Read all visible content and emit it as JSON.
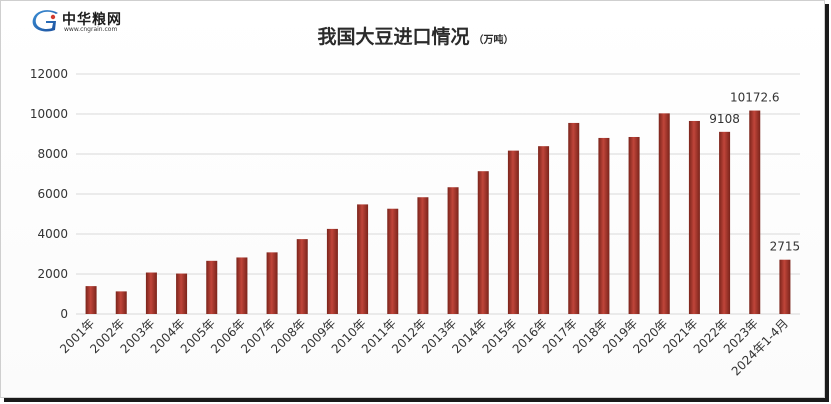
{
  "brand": {
    "name": "中华粮网",
    "url": "www.cngrain.com",
    "mark": "C"
  },
  "colors": {
    "bar_dark": "#7a241b",
    "bar_mid": "#c0453a",
    "bar_light": "#e27a70",
    "grid": "#d9d9d9",
    "axis_text": "#333333"
  },
  "chart_data": {
    "type": "bar",
    "title": "我国大豆进口情况",
    "unit": "（万吨）",
    "categories": [
      "2001年",
      "2002年",
      "2003年",
      "2004年",
      "2005年",
      "2006年",
      "2007年",
      "2008年",
      "2009年",
      "2010年",
      "2011年",
      "2012年",
      "2013年",
      "2014年",
      "2015年",
      "2016年",
      "2017年",
      "2018年",
      "2019年",
      "2020年",
      "2021年",
      "2022年",
      "2023年",
      "2024年1-4月"
    ],
    "values": [
      1394,
      1131,
      2074,
      2023,
      2659,
      2827,
      3082,
      3744,
      4255,
      5480,
      5264,
      5838,
      6338,
      7140,
      8169,
      8391,
      9553,
      8803,
      8851,
      10033,
      9652,
      9108,
      10172.6,
      2715
    ],
    "data_labels": [
      {
        "category": "2022年",
        "text": "9108"
      },
      {
        "category": "2023年",
        "text": "10172.6"
      },
      {
        "category": "2024年1-4月",
        "text": "2715"
      }
    ],
    "ylim": [
      0,
      12000
    ],
    "yticks": [
      "0",
      "2000",
      "4000",
      "6000",
      "8000",
      "10000",
      "12000"
    ],
    "grid": true,
    "legend": "none"
  }
}
